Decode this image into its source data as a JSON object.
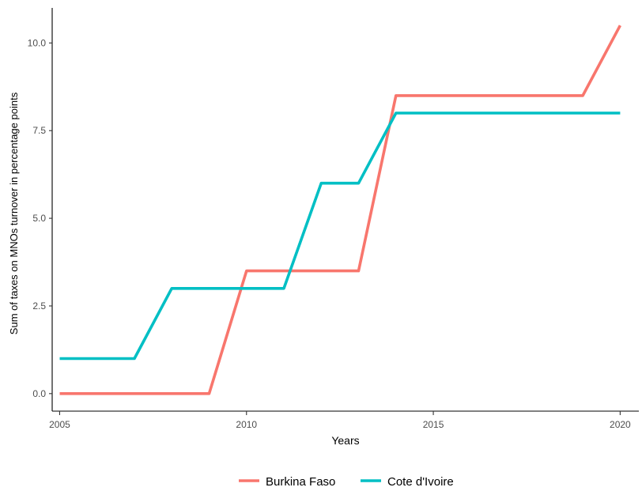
{
  "chart_data": {
    "type": "line",
    "title": "",
    "xlabel": "Years",
    "ylabel": "Sum of taxes on MNOs turnover in percentage points",
    "xlim": [
      2004.8,
      2020.5
    ],
    "ylim": [
      -0.5,
      11
    ],
    "x_ticks": [
      2005,
      2010,
      2015,
      2020
    ],
    "x_tick_labels": [
      "2005",
      "2010",
      "2015",
      "2020"
    ],
    "y_ticks": [
      0,
      2.5,
      5,
      7.5,
      10
    ],
    "y_tick_labels": [
      "0.0",
      "2.5",
      "5.0",
      "7.5",
      "10.0"
    ],
    "grid": false,
    "legend_position": "bottom",
    "series": [
      {
        "name": "Burkina Faso",
        "color": "#F8766D",
        "x": [
          2005,
          2006,
          2007,
          2008,
          2009,
          2010,
          2011,
          2012,
          2013,
          2014,
          2015,
          2016,
          2017,
          2018,
          2019,
          2020
        ],
        "y": [
          0,
          0,
          0,
          0,
          0,
          3.5,
          3.5,
          3.5,
          3.5,
          8.5,
          8.5,
          8.5,
          8.5,
          8.5,
          8.5,
          10.5
        ]
      },
      {
        "name": "Cote d'Ivoire",
        "color": "#00BFC4",
        "x": [
          2005,
          2006,
          2007,
          2008,
          2009,
          2010,
          2011,
          2012,
          2013,
          2014,
          2015,
          2016,
          2017,
          2018,
          2019,
          2020
        ],
        "y": [
          1,
          1,
          1,
          3,
          3,
          3,
          3,
          6,
          6,
          8,
          8,
          8,
          8,
          8,
          8,
          8
        ]
      }
    ]
  }
}
